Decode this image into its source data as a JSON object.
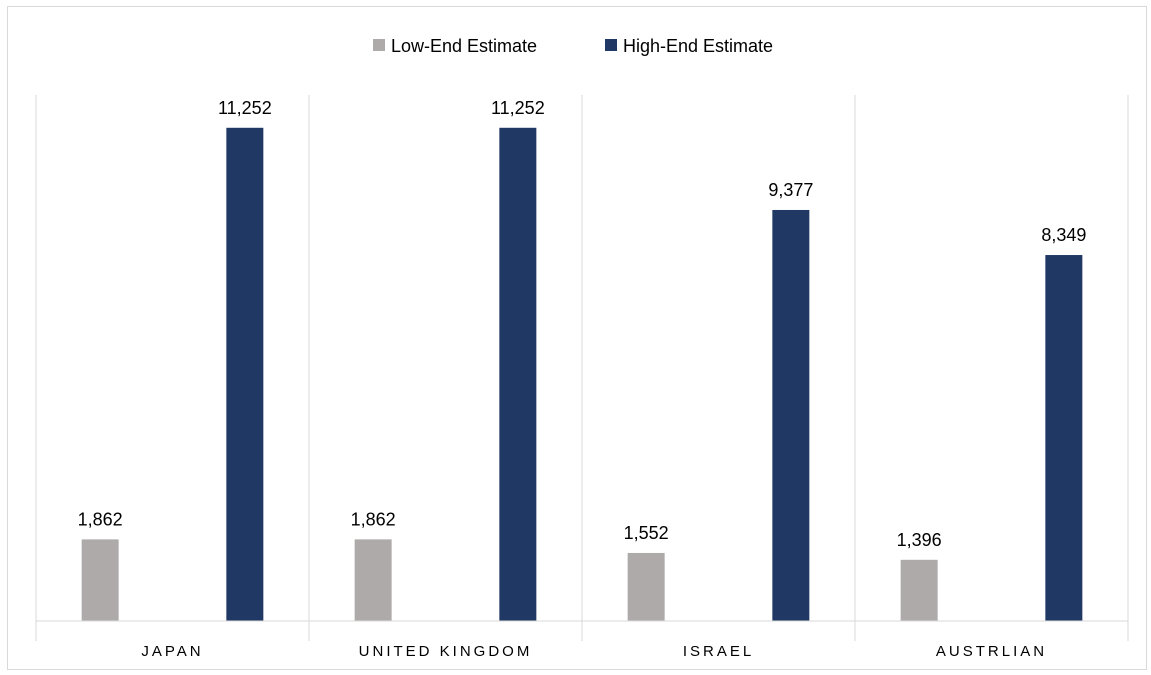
{
  "chart_data": {
    "type": "bar",
    "categories": [
      "JAPAN",
      "UNITED KINGDOM",
      "ISRAEL",
      "AUSTRLIAN"
    ],
    "series": [
      {
        "name": "Low-End Estimate",
        "color": "#aeaaaa",
        "values": [
          1862,
          1862,
          1552,
          1396
        ]
      },
      {
        "name": "High-End Estimate",
        "color": "#203864",
        "values": [
          11252,
          11252,
          9377,
          8349
        ]
      }
    ],
    "data_labels": {
      "low": [
        "1,862",
        "1,862",
        "1,552",
        "1,396"
      ],
      "high": [
        "11,252",
        "11,252",
        "9,377",
        "8,349"
      ]
    },
    "ylim": [
      0,
      12000
    ],
    "legend_position": "top",
    "grid": "vertical category separators"
  }
}
